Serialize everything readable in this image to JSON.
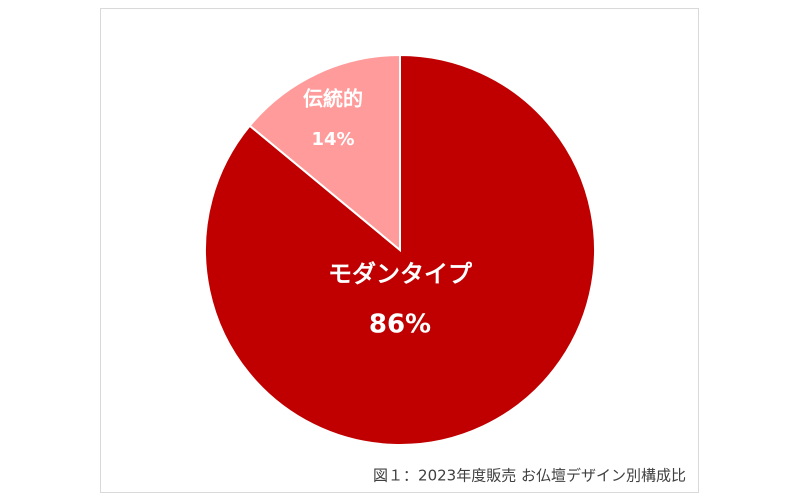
{
  "chart_data": {
    "type": "pie",
    "caption": "図１：2023年度販売 お仏壇デザイン別構成比",
    "categories": [
      "モダンタイプ",
      "伝統的"
    ],
    "values": [
      86,
      14
    ],
    "value_labels": [
      "86%",
      "14%"
    ],
    "colors": [
      "#c00000",
      "#ff9b9b"
    ]
  }
}
